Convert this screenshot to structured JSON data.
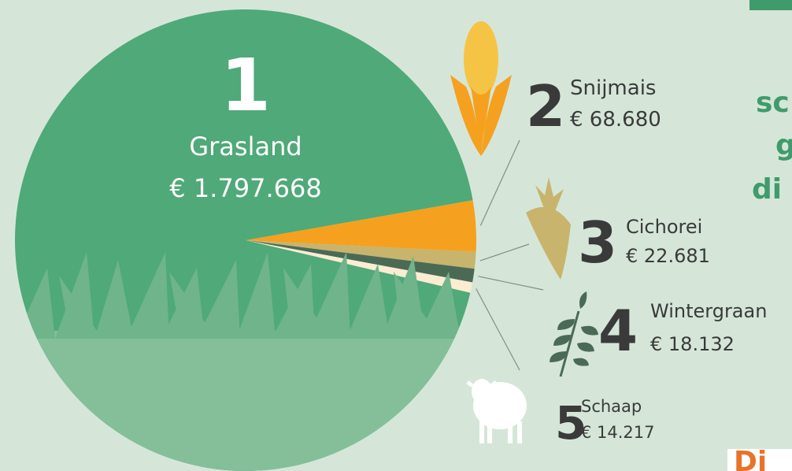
{
  "chart_data": {
    "type": "pie",
    "categories": [
      "Grasland",
      "Snijmais",
      "Cichorei",
      "Wintergraan",
      "Schaap"
    ],
    "values": [
      1797668,
      68680,
      22681,
      18132,
      14217
    ],
    "value_labels": [
      "€ 1.797.668",
      "€ 68.680",
      "€ 22.681",
      "€ 18.132",
      "€ 14.217"
    ],
    "ranks": [
      "1",
      "2",
      "3",
      "4",
      "5"
    ],
    "colors": [
      "#4fa978",
      "#f5a11f",
      "#c8b46c",
      "#4b6a55",
      "#fbecd2"
    ]
  },
  "annotations": [
    "sc",
    "g",
    "di",
    "Di"
  ]
}
